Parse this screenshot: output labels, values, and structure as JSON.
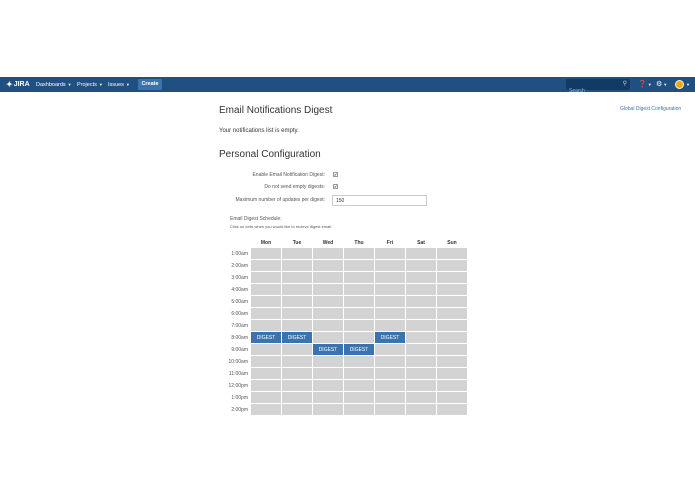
{
  "nav": {
    "logo": "JIRA",
    "items": [
      {
        "label": "Dashboards"
      },
      {
        "label": "Projects"
      },
      {
        "label": "Issues"
      }
    ],
    "create_label": "Create",
    "search_placeholder": "Search",
    "colors": {
      "bar": "#205081",
      "create": "#3b73af"
    }
  },
  "page": {
    "title": "Email Notifications Digest",
    "global_link": "Global Digest Configuration",
    "empty_message": "Your notifications list is empty.",
    "section_title": "Personal Configuration"
  },
  "form": {
    "enable_label": "Enable Email Notification Digest:",
    "enable_checked": "✔",
    "no_empty_label": "Do not send empty digests:",
    "no_empty_checked": "✔",
    "max_label": "Maximum number of updates per digest:",
    "max_value": "150"
  },
  "schedule": {
    "title": "Email Digest Schedule:",
    "hint": "Click on cells when you would like to recieve digest email.",
    "days": [
      "Mon",
      "Tue",
      "Wed",
      "Thu",
      "Fri",
      "Sat",
      "Sun"
    ],
    "cell_label": "DIGEST",
    "active_color": "#3b73af",
    "inactive_color": "#d3d3d3",
    "rows": [
      {
        "time": "1:00am",
        "active": []
      },
      {
        "time": "2:00am",
        "active": []
      },
      {
        "time": "3:00am",
        "active": []
      },
      {
        "time": "4:00am",
        "active": []
      },
      {
        "time": "5:00am",
        "active": []
      },
      {
        "time": "6:00am",
        "active": []
      },
      {
        "time": "7:00am",
        "active": []
      },
      {
        "time": "8:00am",
        "active": [
          "Mon",
          "Tue",
          "Fri"
        ]
      },
      {
        "time": "9:00am",
        "active": [
          "Wed",
          "Thu"
        ]
      },
      {
        "time": "10:00am",
        "active": []
      },
      {
        "time": "11:00am",
        "active": []
      },
      {
        "time": "12:00pm",
        "active": []
      },
      {
        "time": "1:00pm",
        "active": []
      },
      {
        "time": "2:00pm",
        "active": []
      }
    ]
  }
}
